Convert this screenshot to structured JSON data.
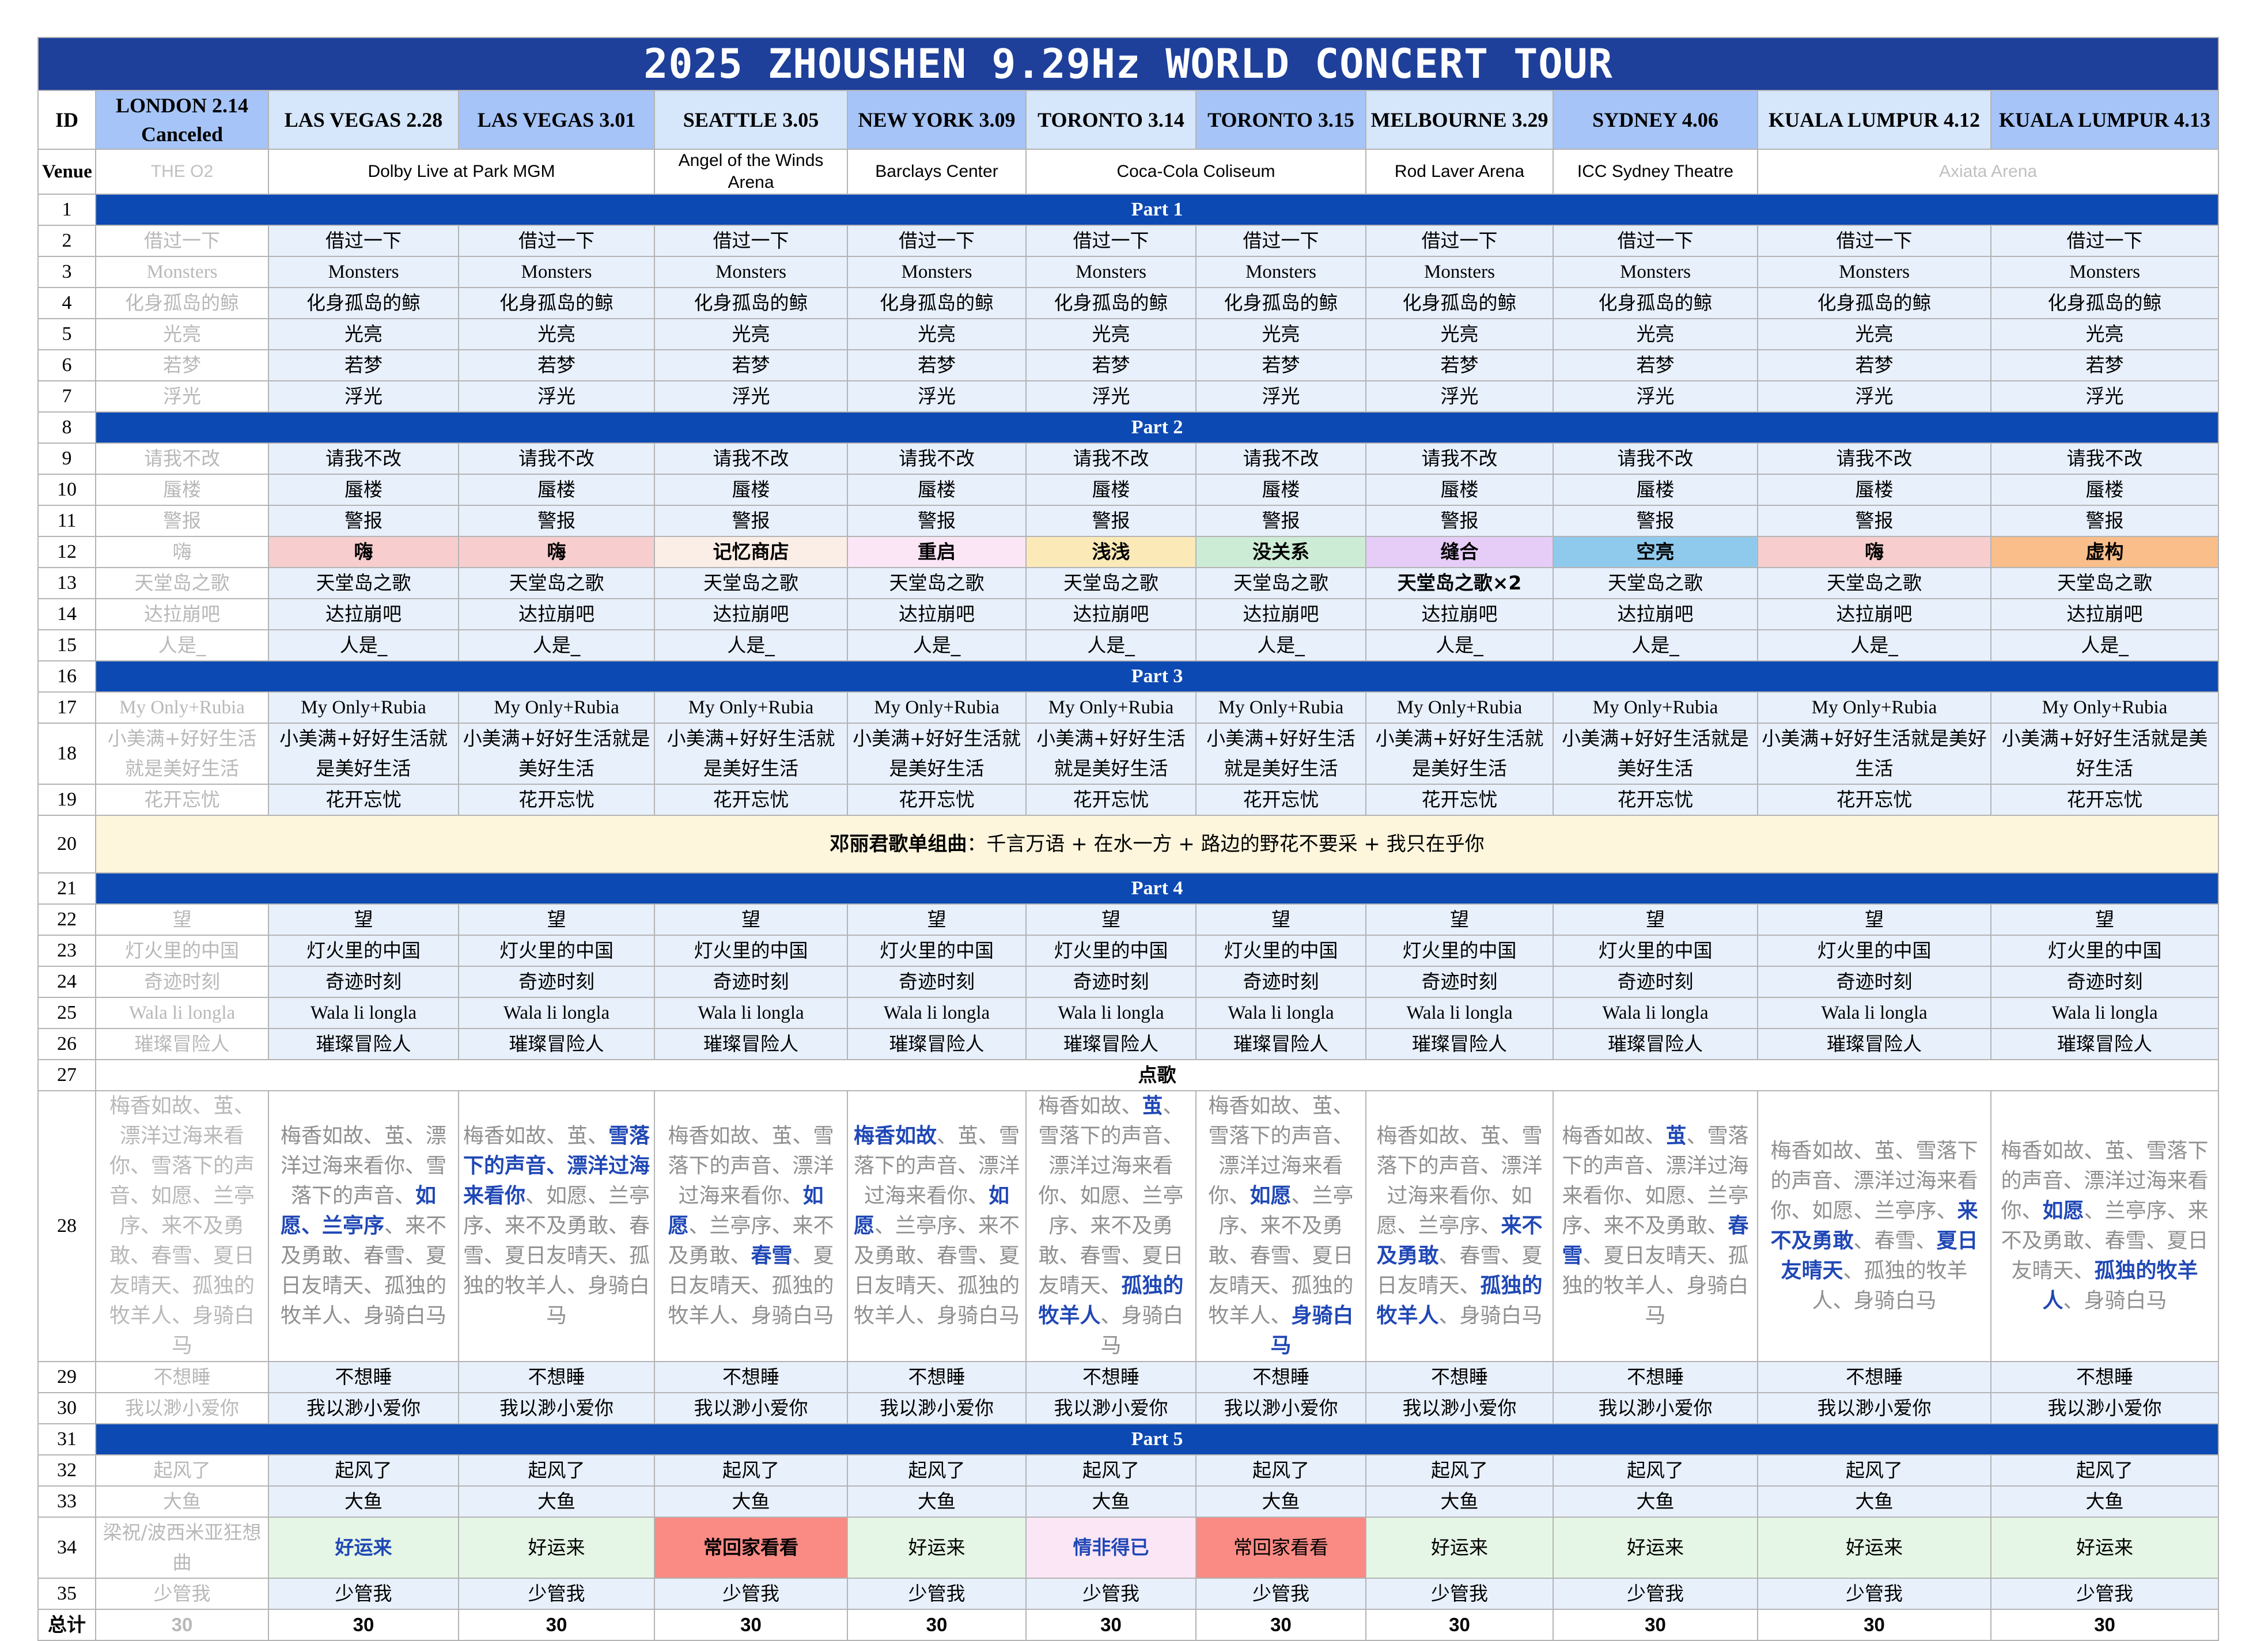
{
  "title": "2025 ZHOUSHEN 9.29Hz WORLD CONCERT TOUR",
  "header": {
    "id_label": "ID",
    "shows": [
      {
        "city": "LONDON 2.14",
        "note": "Canceled",
        "color": "#a6c4f7"
      },
      {
        "city": "LAS VEGAS 2.28",
        "color": "#d6e6fb"
      },
      {
        "city": "LAS VEGAS 3.01",
        "color": "#a6c4f7"
      },
      {
        "city": "SEATTLE 3.05",
        "color": "#d6e6fb"
      },
      {
        "city": "NEW YORK 3.09",
        "color": "#a6c4f7"
      },
      {
        "city": "TORONTO 3.14",
        "color": "#d6e6fb"
      },
      {
        "city": "TORONTO 3.15",
        "color": "#a6c4f7"
      },
      {
        "city": "MELBOURNE 3.29",
        "color": "#d6e6fb"
      },
      {
        "city": "SYDNEY 4.06",
        "color": "#a6c4f7"
      },
      {
        "city": "KUALA LUMPUR 4.12",
        "color": "#d6e6fb"
      },
      {
        "city": "KUALA LUMPUR 4.13",
        "color": "#a6c4f7"
      }
    ]
  },
  "venue": {
    "label": "Venue",
    "london": "THE O2",
    "las_vegas": "Dolby Live at Park MGM",
    "seattle": "Angel of the Winds Arena",
    "new_york": "Barclays Center",
    "toronto": "Coca-Cola Coliseum",
    "melbourne": "Rod Laver Arena",
    "sydney": "ICC Sydney Theatre",
    "kuala_lumpur": "Axiata Arena"
  },
  "parts": {
    "p1": "Part 1",
    "p2": "Part 2",
    "p3": "Part 3",
    "p4": "Part 4",
    "p5": "Part 5",
    "request": "点歌"
  },
  "rows": {
    "r2": "借过一下",
    "r3": "Monsters",
    "r4": "化身孤岛的鲸",
    "r5": "光亮",
    "r6": "若梦",
    "r7": "浮光",
    "r9": "请我不改",
    "r10": "蜃楼",
    "r11": "警报",
    "r12": {
      "london": "嗨",
      "cells": [
        {
          "t": "嗨",
          "c": "#f7cdcd"
        },
        {
          "t": "嗨",
          "c": "#f7cdcd"
        },
        {
          "t": "记忆商店",
          "c": "#fbeee6"
        },
        {
          "t": "重启",
          "c": "#fbe6f6"
        },
        {
          "t": "浅浅",
          "c": "#fbeab8"
        },
        {
          "t": "没关系",
          "c": "#cdecd6"
        },
        {
          "t": "缝合",
          "c": "#e6cdf7"
        },
        {
          "t": "空亮",
          "c": "#8fcaed"
        },
        {
          "t": "嗨",
          "c": "#f7cdcd"
        },
        {
          "t": "虚构",
          "c": "#f9be8a"
        }
      ]
    },
    "r13": {
      "default": "天堂岛之歌",
      "melbourne": "天堂岛之歌×2"
    },
    "r14": "达拉崩吧",
    "r15": "人是_",
    "r17": "My Only+Rubia",
    "r18": {
      "london": "小美满+好好生活就是美好生活",
      "cells": [
        "小美满+好好生活就是美好生活",
        "小美满+好好生活就是美好生活",
        "小美满+好好生活就是美好生活",
        "小美满+好好生活就是美好生活",
        "小美满+好好生活就是美好生活",
        "小美满+好好生活就是美好生活",
        "小美满+好好生活就是美好生活",
        "小美满+好好生活就是美好生活",
        "小美满+好好生活就是美好生活",
        "小美满+好好生活就是美好生活"
      ]
    },
    "r19": "花开忘忧",
    "r20": {
      "lead": "邓丽君歌单组曲",
      "rest": "：千言万语 + 在水一方 + 路边的野花不要采 + 我只在乎你"
    },
    "r22": "望",
    "r23": "灯火里的中国",
    "r24": "奇迹时刻",
    "r25": "Wala li longla",
    "r26": "璀璨冒险人",
    "r28": {
      "london": "梅香如故、茧、漂洋过海来看你、雪落下的声音、如愿、兰亭序、来不及勇敢、春雪、夏日友晴天、孤独的牧羊人、身骑白马",
      "cells": [
        [
          {
            "t": "梅香如故、茧、漂洋过海来看你、雪落下的声音、"
          },
          {
            "t": "如愿、兰亭序",
            "b": true
          },
          {
            "t": "、来不及勇敢、春雪、夏日友晴天、孤独的牧羊人、身骑白马"
          }
        ],
        [
          {
            "t": "梅香如故、茧、"
          },
          {
            "t": "雪落下的声音、漂洋过海来看你",
            "b": true
          },
          {
            "t": "、如愿、兰亭序、来不及勇敢、春雪、夏日友晴天、孤独的牧羊人、身骑白马"
          }
        ],
        [
          {
            "t": "梅香如故、茧、雪落下的声音、漂洋过海来看你、"
          },
          {
            "t": "如愿",
            "b": true
          },
          {
            "t": "、兰亭序、来不及勇敢、"
          },
          {
            "t": "春雪",
            "b": true
          },
          {
            "t": "、夏日友晴天、孤独的牧羊人、身骑白马"
          }
        ],
        [
          {
            "t": "梅香如故",
            "b": true
          },
          {
            "t": "、茧、雪落下的声音、漂洋过海来看你、"
          },
          {
            "t": "如愿",
            "b": true
          },
          {
            "t": "、兰亭序、来不及勇敢、春雪、夏日友晴天、孤独的牧羊人、身骑白马"
          }
        ],
        [
          {
            "t": "梅香如故、"
          },
          {
            "t": "茧",
            "b": true
          },
          {
            "t": "、雪落下的声音、漂洋过海来看你、如愿、兰亭序、来不及勇敢、春雪、夏日友晴天、"
          },
          {
            "t": "孤独的牧羊人",
            "b": true
          },
          {
            "t": "、身骑白马"
          }
        ],
        [
          {
            "t": "梅香如故、茧、雪落下的声音、漂洋过海来看你、"
          },
          {
            "t": "如愿",
            "b": true
          },
          {
            "t": "、兰亭序、来不及勇敢、春雪、夏日友晴天、孤独的牧羊人、"
          },
          {
            "t": "身骑白马",
            "b": true
          }
        ],
        [
          {
            "t": "梅香如故、茧、雪落下的声音、漂洋过海来看你、如愿、兰亭序、"
          },
          {
            "t": "来不及勇敢",
            "b": true
          },
          {
            "t": "、春雪、夏日友晴天、"
          },
          {
            "t": "孤独的牧羊人",
            "b": true
          },
          {
            "t": "、身骑白马"
          }
        ],
        [
          {
            "t": "梅香如故、"
          },
          {
            "t": "茧",
            "b": true
          },
          {
            "t": "、雪落下的声音、漂洋过海来看你、如愿、兰亭序、来不及勇敢、"
          },
          {
            "t": "春雪",
            "b": true
          },
          {
            "t": "、夏日友晴天、孤独的牧羊人、身骑白马"
          }
        ],
        [
          {
            "t": "梅香如故、茧、雪落下的声音、漂洋过海来看你、如愿、兰亭序、"
          },
          {
            "t": "来不及勇敢",
            "b": true
          },
          {
            "t": "、春雪、"
          },
          {
            "t": "夏日友晴天",
            "b": true
          },
          {
            "t": "、孤独的牧羊人、身骑白马"
          }
        ],
        [
          {
            "t": "梅香如故、茧、雪落下的声音、漂洋过海来看你、"
          },
          {
            "t": "如愿",
            "b": true
          },
          {
            "t": "、兰亭序、来不及勇敢、春雪、夏日友晴天、"
          },
          {
            "t": "孤独的牧羊人",
            "b": true
          },
          {
            "t": "、身骑白马"
          }
        ]
      ]
    },
    "r29": "不想睡",
    "r30": "我以渺小爱你",
    "r32": "起风了",
    "r33": "大鱼",
    "r34": {
      "london": "梁祝/波西米亚狂想曲",
      "cells": [
        {
          "t": "好运来",
          "c": "#e6f6e6",
          "b": true,
          "blue": true
        },
        {
          "t": "好运来",
          "c": "#e6f6e6"
        },
        {
          "t": "常回家看看",
          "c": "#f98a84",
          "b": true
        },
        {
          "t": "好运来",
          "c": "#e6f6e6"
        },
        {
          "t": "情非得已",
          "c": "#fbe6f6",
          "b": true,
          "blue": true
        },
        {
          "t": "常回家看看",
          "c": "#f98a84"
        },
        {
          "t": "好运来",
          "c": "#e6f6e6"
        },
        {
          "t": "好运来",
          "c": "#e6f6e6"
        },
        {
          "t": "好运来",
          "c": "#e6f6e6"
        },
        {
          "t": "好运来",
          "c": "#e6f6e6"
        }
      ]
    },
    "r35": "少管我",
    "total": {
      "label": "总计",
      "london": "30",
      "value": "30"
    }
  }
}
